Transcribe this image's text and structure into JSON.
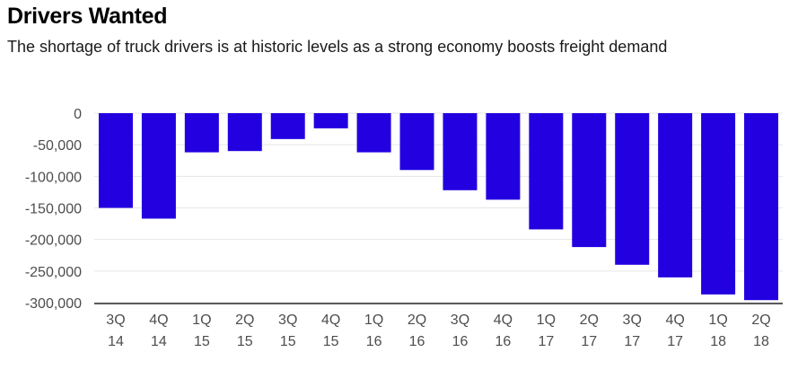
{
  "chart_data": {
    "type": "bar",
    "title": "Drivers Wanted",
    "subtitle": "The shortage of truck drivers is at historic levels as a strong economy boosts freight demand",
    "xlabel": "",
    "ylabel": "",
    "categories": [
      [
        "3Q",
        "14"
      ],
      [
        "4Q",
        "14"
      ],
      [
        "1Q",
        "15"
      ],
      [
        "2Q",
        "15"
      ],
      [
        "3Q",
        "15"
      ],
      [
        "4Q",
        "15"
      ],
      [
        "1Q",
        "16"
      ],
      [
        "2Q",
        "16"
      ],
      [
        "3Q",
        "16"
      ],
      [
        "4Q",
        "16"
      ],
      [
        "1Q",
        "17"
      ],
      [
        "2Q",
        "17"
      ],
      [
        "3Q",
        "17"
      ],
      [
        "4Q",
        "17"
      ],
      [
        "1Q",
        "18"
      ],
      [
        "2Q",
        "18"
      ]
    ],
    "values": [
      -150000,
      -167000,
      -62000,
      -60000,
      -41000,
      -24000,
      -62000,
      -90000,
      -122000,
      -137000,
      -184000,
      -212000,
      -240000,
      -260000,
      -287000,
      -296000
    ],
    "ylim": [
      -300000,
      0
    ],
    "yticks": [
      0,
      -50000,
      -100000,
      -150000,
      -200000,
      -250000,
      -300000
    ],
    "ytick_labels": [
      "0",
      "-50,000",
      "-100,000",
      "-150,000",
      "-200,000",
      "-250,000",
      "-300,000"
    ],
    "bar_color": "#2200e0",
    "grid": true,
    "legend": "none"
  }
}
